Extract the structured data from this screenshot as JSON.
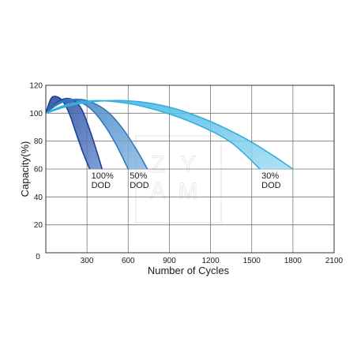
{
  "chart_data": {
    "type": "line",
    "title": "",
    "xlabel": "Number of Cycles",
    "ylabel": "Capacity(%)",
    "xlim": [
      0,
      2100
    ],
    "ylim": [
      0,
      120
    ],
    "x_ticks": [
      300,
      600,
      900,
      1200,
      1500,
      1800,
      2100
    ],
    "y_ticks": [
      0,
      20,
      40,
      60,
      80,
      100,
      120
    ],
    "origin_label": "0",
    "grid": true,
    "legend": "none",
    "watermark": [
      "Z",
      "Y",
      "A",
      "M"
    ],
    "series": [
      {
        "label_lines": [
          "100%",
          "DOD"
        ],
        "color_edge": "#1d3f96",
        "color_band": "#6a8fcf",
        "upper": [
          [
            0,
            100
          ],
          [
            35,
            110
          ],
          [
            70,
            112
          ],
          [
            120,
            109
          ],
          [
            170,
            100
          ],
          [
            220,
            86
          ],
          [
            270,
            72
          ],
          [
            320,
            60
          ]
        ],
        "lower": [
          [
            0,
            100
          ],
          [
            100,
            109
          ],
          [
            190,
            110
          ],
          [
            260,
            103
          ],
          [
            320,
            88
          ],
          [
            370,
            73
          ],
          [
            410,
            60
          ]
        ]
      },
      {
        "label_lines": [
          "50%",
          "DOD"
        ],
        "color_edge": "#2f78bd",
        "color_band": "#8bb9e3",
        "upper": [
          [
            0,
            100
          ],
          [
            80,
            107
          ],
          [
            160,
            110
          ],
          [
            250,
            108
          ],
          [
            340,
            102
          ],
          [
            430,
            91
          ],
          [
            520,
            76
          ],
          [
            600,
            60
          ]
        ],
        "lower": [
          [
            0,
            100
          ],
          [
            100,
            107
          ],
          [
            220,
            110
          ],
          [
            330,
            108
          ],
          [
            450,
            101
          ],
          [
            560,
            89
          ],
          [
            660,
            74
          ],
          [
            740,
            60
          ]
        ]
      },
      {
        "label_lines": [
          "30%",
          "DOD"
        ],
        "color_edge": "#32aee0",
        "color_band": "#9fdcf3",
        "upper": [
          [
            0,
            100
          ],
          [
            150,
            106
          ],
          [
            350,
            109
          ],
          [
            600,
            107
          ],
          [
            850,
            101
          ],
          [
            1100,
            92
          ],
          [
            1350,
            79
          ],
          [
            1560,
            60
          ]
        ],
        "lower": [
          [
            0,
            100
          ],
          [
            200,
            106
          ],
          [
            450,
            109
          ],
          [
            700,
            108
          ],
          [
            950,
            103
          ],
          [
            1200,
            94
          ],
          [
            1450,
            82
          ],
          [
            1650,
            70
          ],
          [
            1800,
            60
          ]
        ]
      }
    ]
  }
}
